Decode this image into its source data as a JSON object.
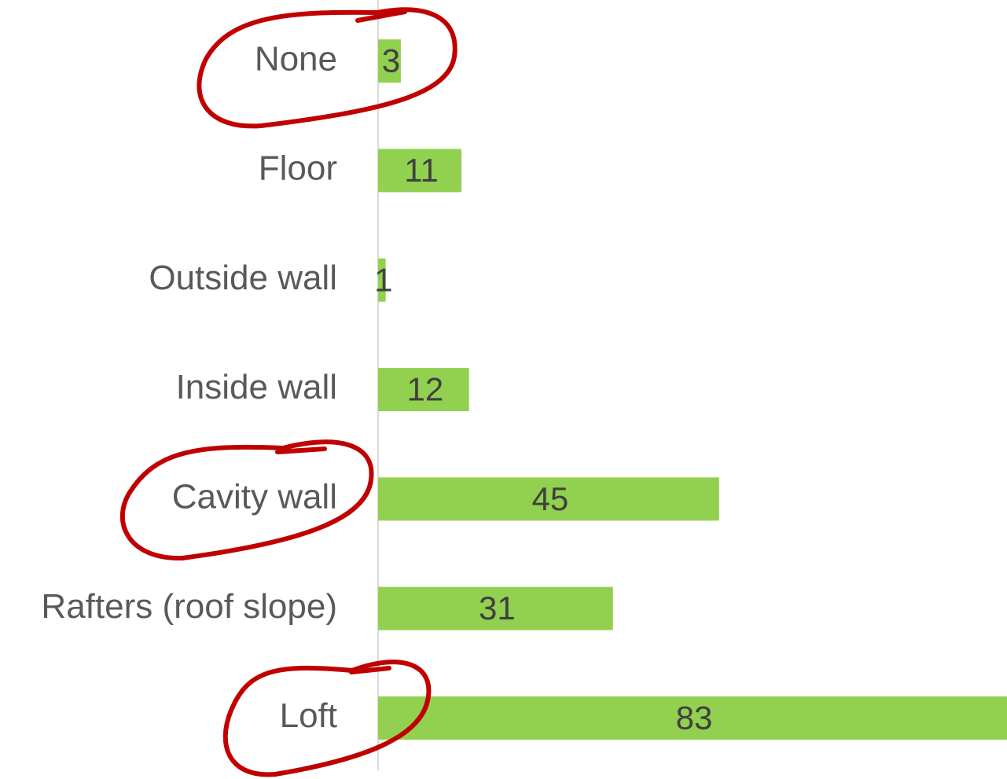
{
  "chart_data": {
    "type": "bar",
    "orientation": "horizontal",
    "categories": [
      "None",
      "Floor",
      "Outside wall",
      "Inside wall",
      "Cavity wall",
      "Rafters (roof slope)",
      "Loft"
    ],
    "values": [
      3,
      11,
      1,
      12,
      45,
      31,
      83
    ],
    "color": "#92d050"
  }
}
